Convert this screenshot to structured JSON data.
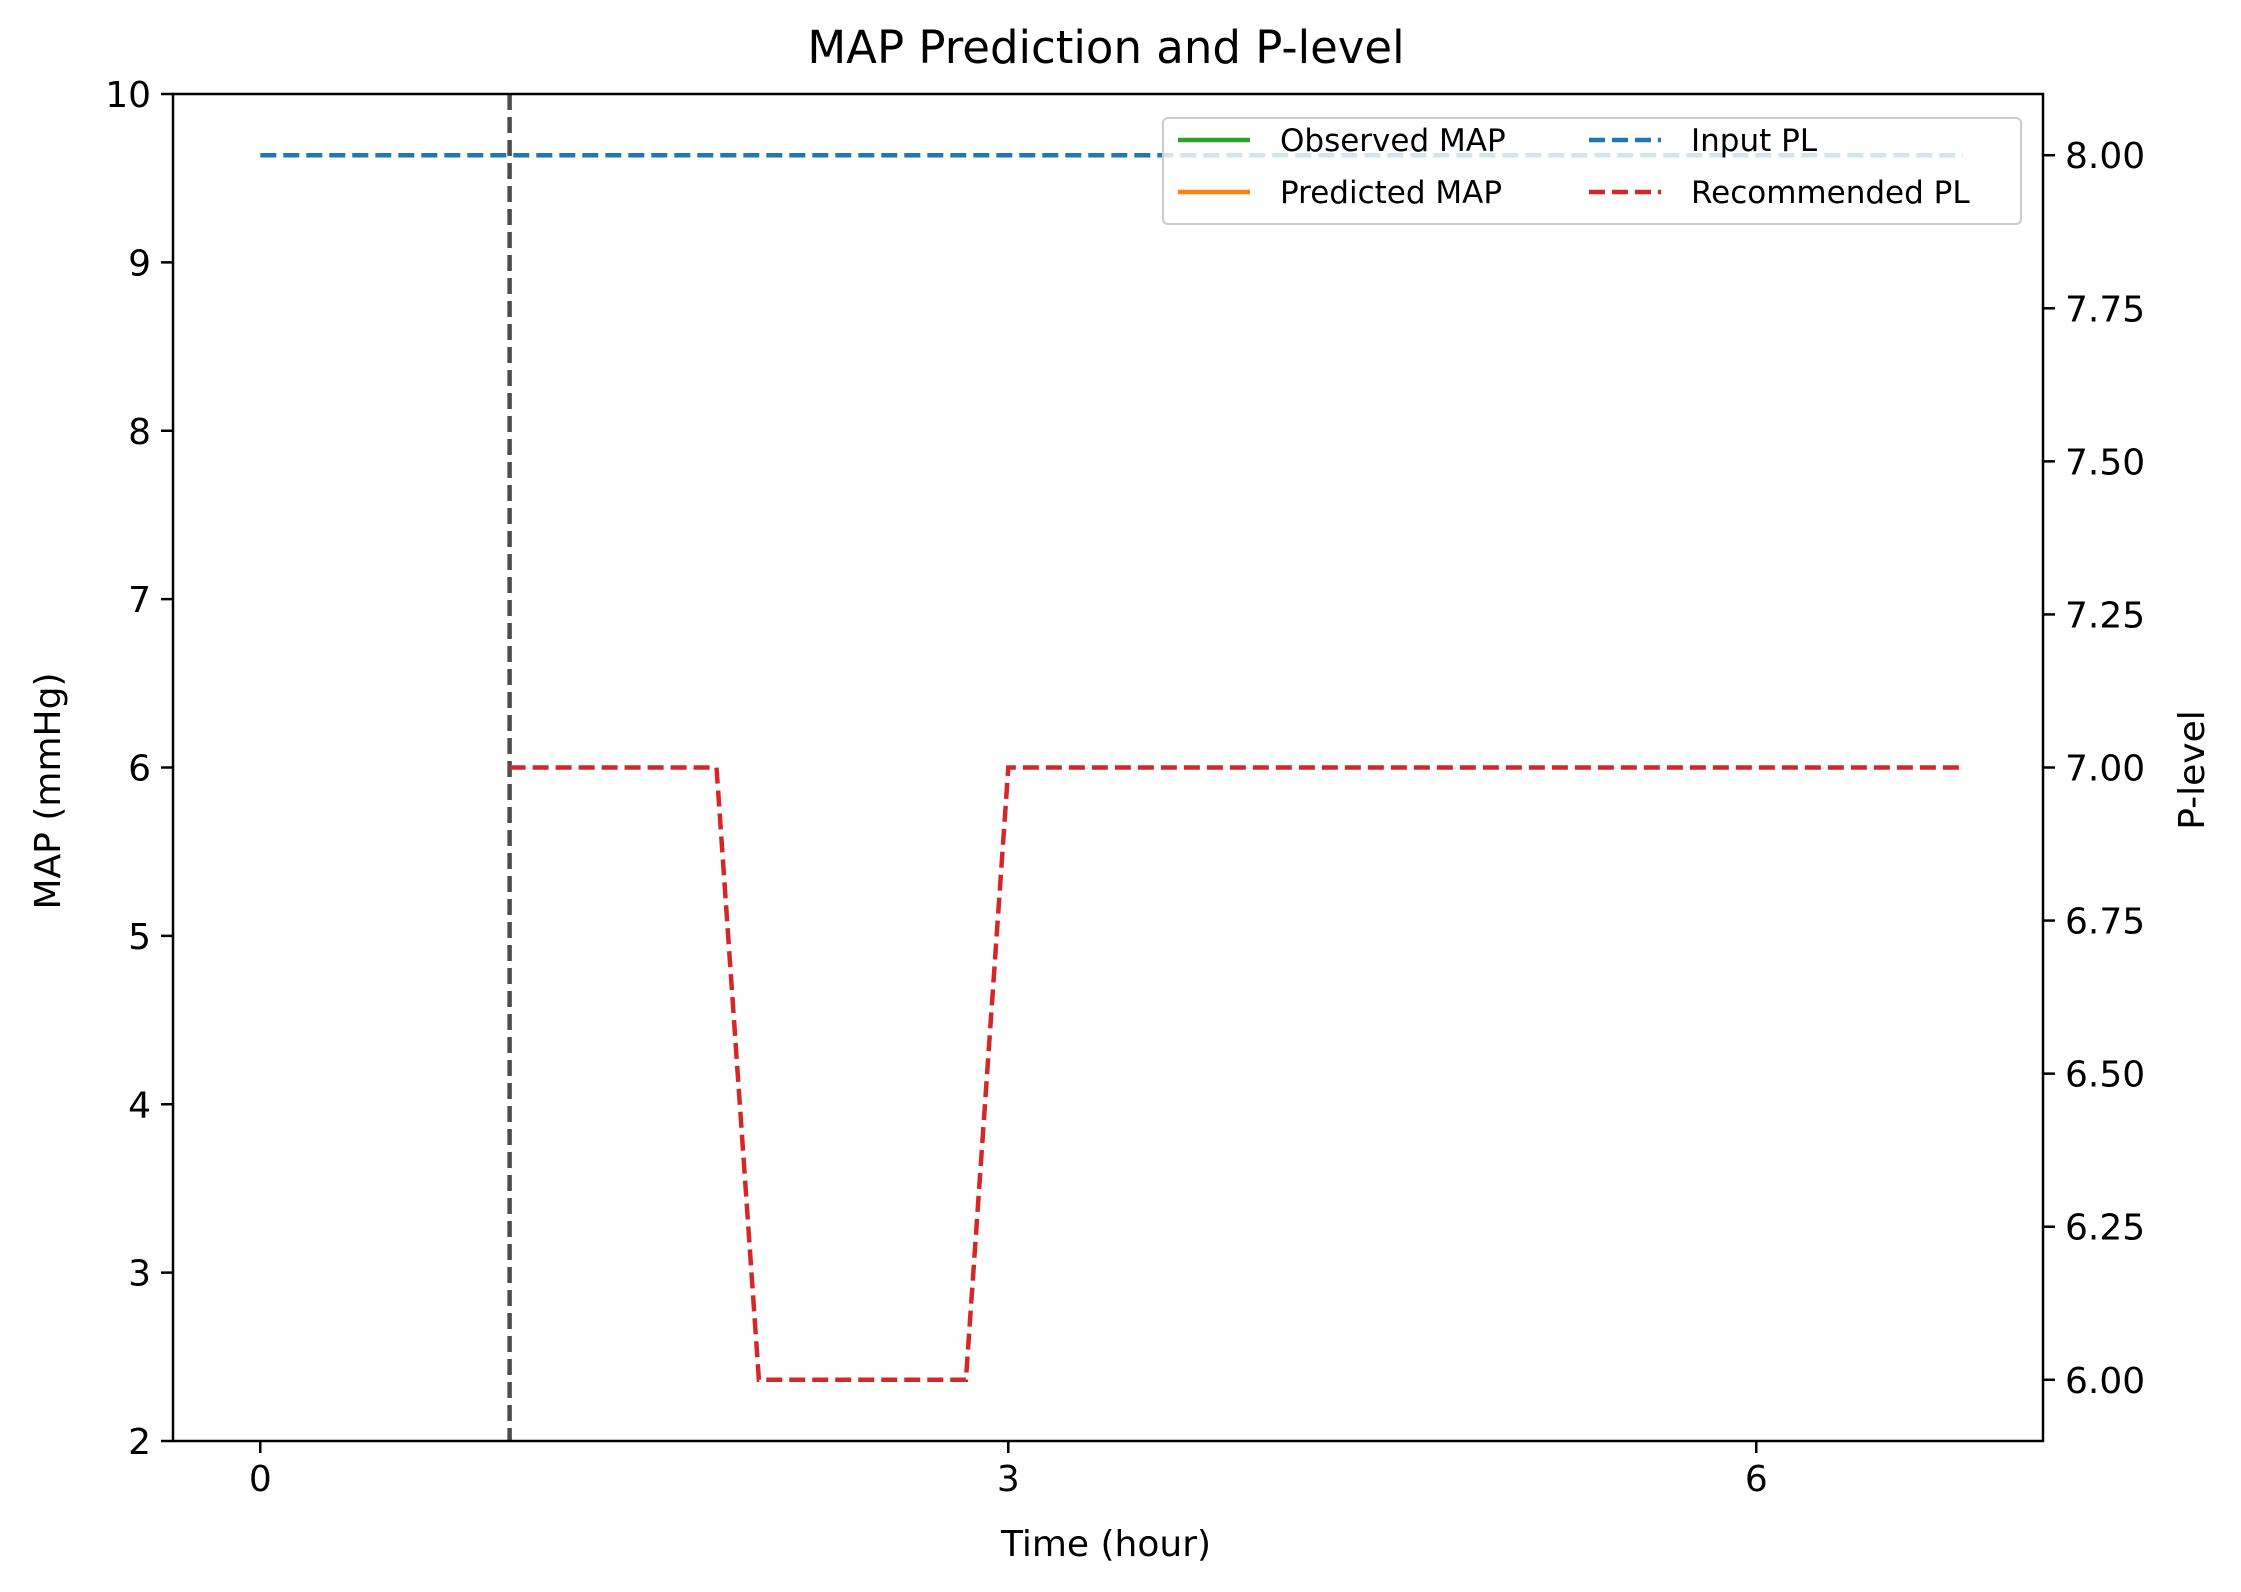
{
  "chart_data": {
    "type": "line",
    "title": "MAP Prediction and P-level",
    "xlabel": "Time (hour)",
    "ylabel": "MAP (mmHg)",
    "y2label": "P-level",
    "xlim": [
      -0.35,
      7.15
    ],
    "ylim": [
      2,
      10
    ],
    "y2lim": [
      5.9,
      8.1
    ],
    "xticks": [
      0,
      3,
      6
    ],
    "yticks": [
      2,
      3,
      4,
      5,
      6,
      7,
      8,
      9,
      10
    ],
    "y2ticks": [
      "6.00",
      "6.25",
      "6.50",
      "6.75",
      "7.00",
      "7.25",
      "7.50",
      "7.75",
      "8.00"
    ],
    "grid": false,
    "legend": {
      "position": "top-right",
      "columns": 2
    },
    "vline": {
      "x": 1,
      "color": "#4d4d4d",
      "style": "dashed"
    },
    "series": [
      {
        "name": "Observed MAP",
        "axis": "left",
        "color": "#2ca02c",
        "style": "solid",
        "x": [],
        "y": []
      },
      {
        "name": "Predicted MAP",
        "axis": "left",
        "color": "#ff7f0e",
        "style": "solid",
        "x": [],
        "y": []
      },
      {
        "name": "Input PL",
        "axis": "right",
        "color": "#1f77b4",
        "style": "dashed",
        "x": [
          0,
          6.83
        ],
        "y": [
          8,
          8
        ]
      },
      {
        "name": "Recommended PL",
        "axis": "right",
        "color": "#d62728",
        "style": "dashed",
        "x": [
          1,
          1.83,
          2,
          2.83,
          3,
          6.83
        ],
        "y": [
          7,
          7,
          6,
          6,
          7,
          7
        ]
      }
    ]
  }
}
